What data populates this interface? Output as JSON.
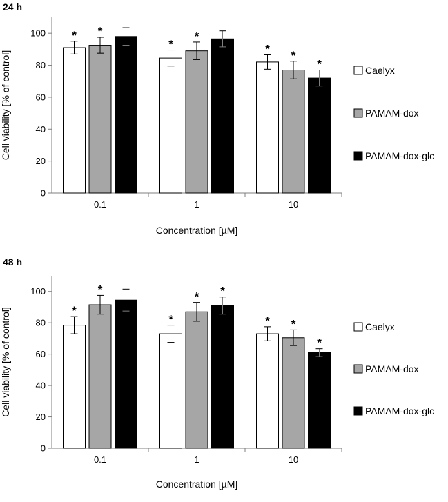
{
  "chart_data": [
    {
      "type": "bar",
      "title": "24 h",
      "xlabel": "Concentration [µM]",
      "ylabel": "Cell viability [% of control]",
      "categories": [
        "0.1",
        "1",
        "10"
      ],
      "ylim": [
        0,
        110
      ],
      "yticks": [
        0,
        20,
        40,
        60,
        80,
        100
      ],
      "legend_position": "right",
      "series": [
        {
          "name": "Caelyx",
          "color": "#ffffff",
          "values": [
            91,
            84.5,
            82
          ],
          "errors": [
            4,
            5,
            4.5
          ],
          "significant": [
            true,
            true,
            true
          ]
        },
        {
          "name": "PAMAM-dox",
          "color": "#a6a6a6",
          "values": [
            92.5,
            89,
            77
          ],
          "errors": [
            5,
            5.5,
            5.5
          ],
          "significant": [
            true,
            true,
            true
          ]
        },
        {
          "name": "PAMAM-dox-glc",
          "color": "#000000",
          "values": [
            98,
            96.5,
            72
          ],
          "errors": [
            5.5,
            5,
            5
          ],
          "significant": [
            false,
            false,
            true
          ]
        }
      ],
      "significance_marker": "*"
    },
    {
      "type": "bar",
      "title": "48 h",
      "xlabel": "Concentration [µM]",
      "ylabel": "Cell viability [% of control]",
      "categories": [
        "0.1",
        "1",
        "10"
      ],
      "ylim": [
        0,
        110
      ],
      "yticks": [
        0,
        20,
        40,
        60,
        80,
        100
      ],
      "legend_position": "right",
      "series": [
        {
          "name": "Caelyx",
          "color": "#ffffff",
          "values": [
            78.5,
            73,
            73
          ],
          "errors": [
            5.5,
            5.5,
            4.5
          ],
          "significant": [
            true,
            true,
            true
          ]
        },
        {
          "name": "PAMAM-dox",
          "color": "#a6a6a6",
          "values": [
            91.5,
            87,
            70.5
          ],
          "errors": [
            6,
            6,
            5
          ],
          "significant": [
            true,
            true,
            true
          ]
        },
        {
          "name": "PAMAM-dox-glc",
          "color": "#000000",
          "values": [
            94.5,
            91,
            61
          ],
          "errors": [
            7,
            5.5,
            2.5
          ],
          "significant": [
            false,
            true,
            true
          ]
        }
      ],
      "significance_marker": "*"
    }
  ]
}
